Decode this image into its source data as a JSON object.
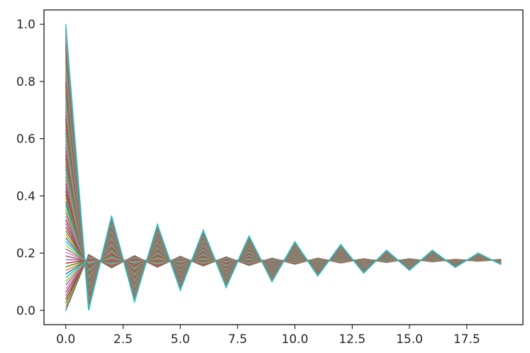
{
  "chart_data": {
    "type": "line",
    "title": "",
    "xlabel": "",
    "ylabel": "",
    "xlim": [
      -0.95,
      19.95
    ],
    "ylim": [
      -0.05,
      1.05
    ],
    "x": [
      0,
      1,
      2,
      3,
      4,
      5,
      6,
      7,
      8,
      9,
      10,
      11,
      12,
      13,
      14,
      15,
      16,
      17,
      18,
      19
    ],
    "x_ticks": [
      0.0,
      2.5,
      5.0,
      7.5,
      10.0,
      12.5,
      15.0,
      17.5
    ],
    "x_tick_labels": [
      "0.0",
      "2.5",
      "5.0",
      "7.5",
      "10.0",
      "12.5",
      "15.0",
      "17.5"
    ],
    "y_ticks": [
      0.0,
      0.2,
      0.4,
      0.6,
      0.8,
      1.0
    ],
    "y_tick_labels": [
      "0.0",
      "0.2",
      "0.4",
      "0.6",
      "0.8",
      "1.0"
    ],
    "grid": false,
    "legend": "none",
    "series_count": 80,
    "series_start_range": [
      0.0,
      1.0
    ],
    "convergence_value": 0.175,
    "envelope_upper": [
      1.0,
      0.27,
      0.33,
      0.25,
      0.3,
      0.24,
      0.28,
      0.23,
      0.26,
      0.21,
      0.24,
      0.21,
      0.23,
      0.2,
      0.21,
      0.2,
      0.21,
      0.19,
      0.2,
      0.19
    ],
    "envelope_lower": [
      0.0,
      0.0,
      0.05,
      0.03,
      0.06,
      0.07,
      0.08,
      0.08,
      0.09,
      0.1,
      0.11,
      0.12,
      0.13,
      0.13,
      0.14,
      0.14,
      0.15,
      0.15,
      0.16,
      0.16
    ],
    "colors": [
      "#1f77b4",
      "#ff7f0e",
      "#2ca02c",
      "#d62728",
      "#9467bd",
      "#8c564b",
      "#e377c2",
      "#7f7f7f",
      "#bcbd22",
      "#17becf"
    ]
  }
}
